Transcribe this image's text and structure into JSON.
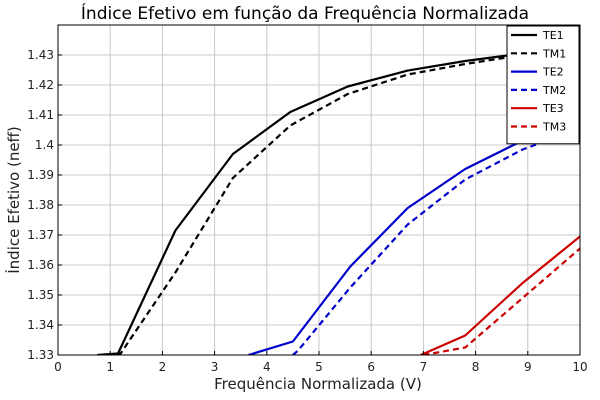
{
  "chart_data": {
    "type": "line",
    "title": "Índice Efetivo em função da Frequência Normalizada",
    "xlabel": "Frequência Normalizada (V)",
    "ylabel": "Índice Efetivo (neff)",
    "xlim": [
      0,
      10
    ],
    "ylim": [
      1.33,
      1.44
    ],
    "xticks": [
      0,
      1,
      2,
      3,
      4,
      5,
      6,
      7,
      8,
      9,
      10
    ],
    "yticks": [
      1.33,
      1.34,
      1.35,
      1.36,
      1.37,
      1.38,
      1.39,
      1.4,
      1.41,
      1.42,
      1.43
    ],
    "ytick_labels": [
      "1.33",
      "1.34",
      "1.35",
      "1.36",
      "1.37",
      "1.38",
      "1.39",
      "1.4",
      "1.41",
      "1.42",
      "1.43"
    ],
    "grid": true,
    "legend_position": "top-right",
    "series": [
      {
        "name": "TE1",
        "color": "#000000",
        "dash": "solid",
        "x": [
          0.75,
          1.15,
          2.25,
          3.35,
          4.45,
          5.55,
          6.7,
          7.8,
          8.9,
          10
        ],
        "y": [
          1.33,
          1.3305,
          1.3715,
          1.397,
          1.411,
          1.4195,
          1.4248,
          1.428,
          1.4305,
          1.431
        ]
      },
      {
        "name": "TM1",
        "color": "#000000",
        "dash": "dashed",
        "x": [
          0.95,
          1.2,
          2.25,
          3.35,
          4.45,
          5.55,
          6.7,
          7.8,
          8.9,
          10
        ],
        "y": [
          1.33,
          1.3305,
          1.3575,
          1.389,
          1.4065,
          1.417,
          1.4235,
          1.427,
          1.43,
          1.431
        ]
      },
      {
        "name": "TE2",
        "color": "#0000cc",
        "dash": "solid",
        "x": [
          3.65,
          4.5,
          5.6,
          6.7,
          7.8,
          8.9,
          10
        ],
        "y": [
          1.33,
          1.3345,
          1.3595,
          1.379,
          1.392,
          1.4015,
          1.408
        ]
      },
      {
        "name": "TM2",
        "color": "#0000cc",
        "dash": "dashed",
        "x": [
          4.5,
          4.6,
          5.6,
          6.7,
          7.8,
          8.9,
          10
        ],
        "y": [
          1.33,
          1.3315,
          1.3525,
          1.3735,
          1.3885,
          1.3985,
          1.4055
        ]
      },
      {
        "name": "TE3",
        "color": "#cc0000",
        "dash": "solid",
        "x": [
          6.95,
          7.8,
          8.9,
          10
        ],
        "y": [
          1.33,
          1.3365,
          1.354,
          1.3695
        ]
      },
      {
        "name": "TM3",
        "color": "#cc0000",
        "dash": "dashed",
        "x": [
          7.0,
          7.8,
          8.9,
          10
        ],
        "y": [
          1.33,
          1.3325,
          1.349,
          1.3655
        ]
      }
    ]
  }
}
